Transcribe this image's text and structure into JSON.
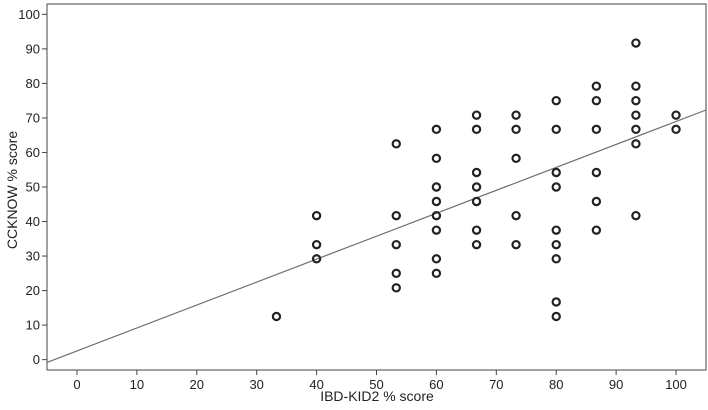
{
  "chart_data": {
    "type": "scatter",
    "xlabel": "IBD-KID2 % score",
    "ylabel": "CCKNOW % score",
    "xlim": [
      -5,
      105
    ],
    "ylim": [
      -3,
      103
    ],
    "xticks": [
      "0",
      "10",
      "20",
      "30",
      "40",
      "50",
      "60",
      "70",
      "80",
      "90",
      "100"
    ],
    "yticks": [
      "0",
      "10",
      "20",
      "30",
      "40",
      "50",
      "60",
      "70",
      "80",
      "90",
      "100"
    ],
    "grid": false,
    "fit_line": {
      "x": [
        -5,
        105
      ],
      "y": [
        -0.8,
        72.3
      ]
    },
    "series": [
      {
        "points": [
          [
            33.3,
            12.5
          ],
          [
            40,
            41.7
          ],
          [
            40,
            33.3
          ],
          [
            40,
            29.2
          ],
          [
            53.3,
            62.5
          ],
          [
            53.3,
            41.7
          ],
          [
            53.3,
            33.3
          ],
          [
            53.3,
            25
          ],
          [
            53.3,
            20.8
          ],
          [
            60,
            66.7
          ],
          [
            60,
            58.3
          ],
          [
            60,
            50
          ],
          [
            60,
            45.8
          ],
          [
            60,
            41.7
          ],
          [
            60,
            37.5
          ],
          [
            60,
            29.2
          ],
          [
            60,
            25
          ],
          [
            66.7,
            70.8
          ],
          [
            66.7,
            66.7
          ],
          [
            66.7,
            54.2
          ],
          [
            66.7,
            50
          ],
          [
            66.7,
            45.8
          ],
          [
            66.7,
            37.5
          ],
          [
            66.7,
            33.3
          ],
          [
            73.3,
            70.8
          ],
          [
            73.3,
            66.7
          ],
          [
            73.3,
            58.3
          ],
          [
            73.3,
            41.7
          ],
          [
            73.3,
            33.3
          ],
          [
            80,
            75
          ],
          [
            80,
            66.7
          ],
          [
            80,
            54.2
          ],
          [
            80,
            50
          ],
          [
            80,
            37.5
          ],
          [
            80,
            33.3
          ],
          [
            80,
            29.2
          ],
          [
            80,
            16.7
          ],
          [
            80,
            12.5
          ],
          [
            86.7,
            79.2
          ],
          [
            86.7,
            75
          ],
          [
            86.7,
            66.7
          ],
          [
            86.7,
            54.2
          ],
          [
            86.7,
            45.8
          ],
          [
            86.7,
            37.5
          ],
          [
            93.3,
            91.7
          ],
          [
            93.3,
            79.2
          ],
          [
            93.3,
            75
          ],
          [
            93.3,
            70.8
          ],
          [
            93.3,
            66.7
          ],
          [
            93.3,
            62.5
          ],
          [
            93.3,
            41.7
          ],
          [
            100,
            70.8
          ],
          [
            100,
            66.7
          ]
        ]
      }
    ],
    "colors": {
      "marker": "#222222",
      "line": "#6f6f6f",
      "axis": "#444444"
    }
  }
}
